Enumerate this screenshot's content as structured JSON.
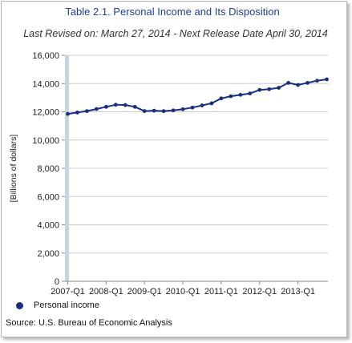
{
  "header": {
    "title": "Table 2.1. Personal Income and Its Disposition",
    "subtitle": "Last Revised on: March 27, 2014 - Next Release Date April 30, 2014"
  },
  "source": "Source: U.S. Bureau of Economic Analysis",
  "colors": {
    "series": "#1a2f80",
    "highlight_band": "#c8d4e0",
    "axis": "#888888",
    "grid": "#cccccc"
  },
  "chart_data": {
    "type": "line",
    "ylabel": "[Billions of dollars]",
    "xlabel": "",
    "ylim": [
      0,
      16000
    ],
    "yticks": [
      0,
      2000,
      4000,
      6000,
      8000,
      10000,
      12000,
      14000,
      16000
    ],
    "ytick_labels": [
      "0",
      "2,000",
      "4,000",
      "6,000",
      "8,000",
      "10,000",
      "12,000",
      "14,000",
      "16,000"
    ],
    "xtick_labels": [
      "2007-Q1",
      "2008-Q1",
      "2009-Q1",
      "2010-Q1",
      "2011-Q1",
      "2012-Q1",
      "2013-Q1"
    ],
    "grid": "horizontal",
    "legend": "bottom-left",
    "x": [
      "2007-Q1",
      "2007-Q2",
      "2007-Q3",
      "2007-Q4",
      "2008-Q1",
      "2008-Q2",
      "2008-Q3",
      "2008-Q4",
      "2009-Q1",
      "2009-Q2",
      "2009-Q3",
      "2009-Q4",
      "2010-Q1",
      "2010-Q2",
      "2010-Q3",
      "2010-Q4",
      "2011-Q1",
      "2011-Q2",
      "2011-Q3",
      "2011-Q4",
      "2012-Q1",
      "2012-Q2",
      "2012-Q3",
      "2012-Q4",
      "2013-Q1",
      "2013-Q2",
      "2013-Q3",
      "2013-Q4"
    ],
    "series": [
      {
        "name": "Personal income",
        "values": [
          11850,
          11950,
          12050,
          12200,
          12350,
          12500,
          12480,
          12350,
          12050,
          12080,
          12050,
          12100,
          12180,
          12300,
          12450,
          12600,
          12950,
          13100,
          13200,
          13300,
          13550,
          13600,
          13700,
          14050,
          13900,
          14050,
          14200,
          14300
        ]
      }
    ]
  }
}
